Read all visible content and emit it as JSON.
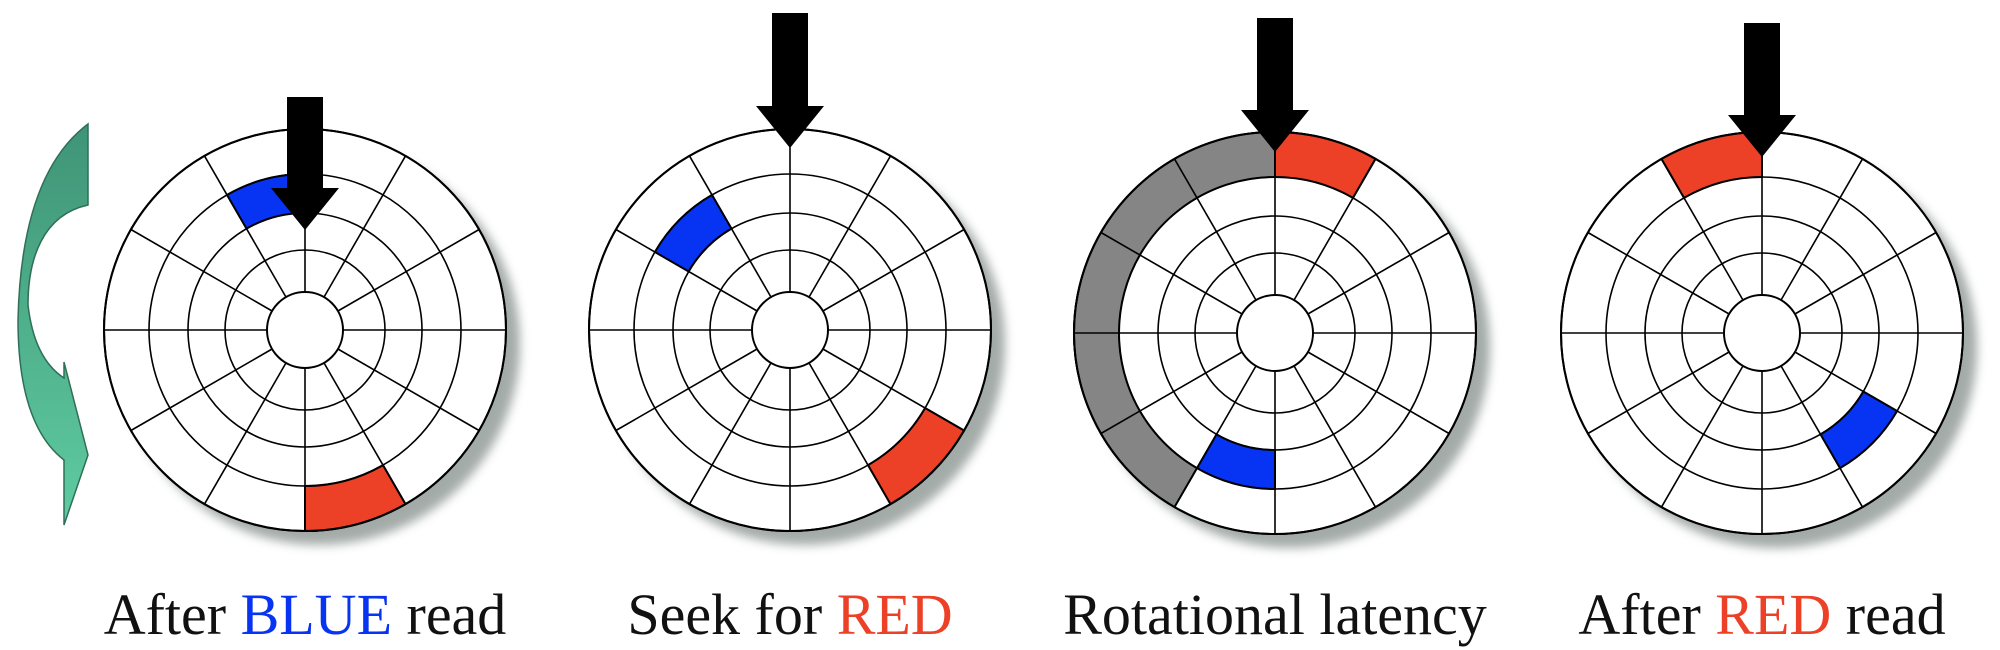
{
  "colors": {
    "blue": "#0733f2",
    "red": "#ec4027",
    "gray": "#858585",
    "arrow": "#000000",
    "rotation_arrow_top": "#3f9477",
    "rotation_arrow_bottom": "#5fcca1",
    "shadow": "#9aa29f"
  },
  "icons": [
    "rotation-arrow-icon",
    "read-head-arrow-icon"
  ],
  "panels": [
    {
      "caption": [
        {
          "text": "After ",
          "color": "#111111"
        },
        {
          "text": "BLUE",
          "color": "#0733f2"
        },
        {
          "text": " read",
          "color": "#111111"
        }
      ]
    },
    {
      "caption": [
        {
          "text": "Seek for ",
          "color": "#111111"
        },
        {
          "text": "RED",
          "color": "#ec4027"
        }
      ]
    },
    {
      "caption": [
        {
          "text": "Rotational latency",
          "color": "#111111"
        }
      ]
    },
    {
      "caption": [
        {
          "text": "After ",
          "color": "#111111"
        },
        {
          "text": "RED",
          "color": "#ec4027"
        },
        {
          "text": " read",
          "color": "#111111"
        }
      ]
    }
  ]
}
